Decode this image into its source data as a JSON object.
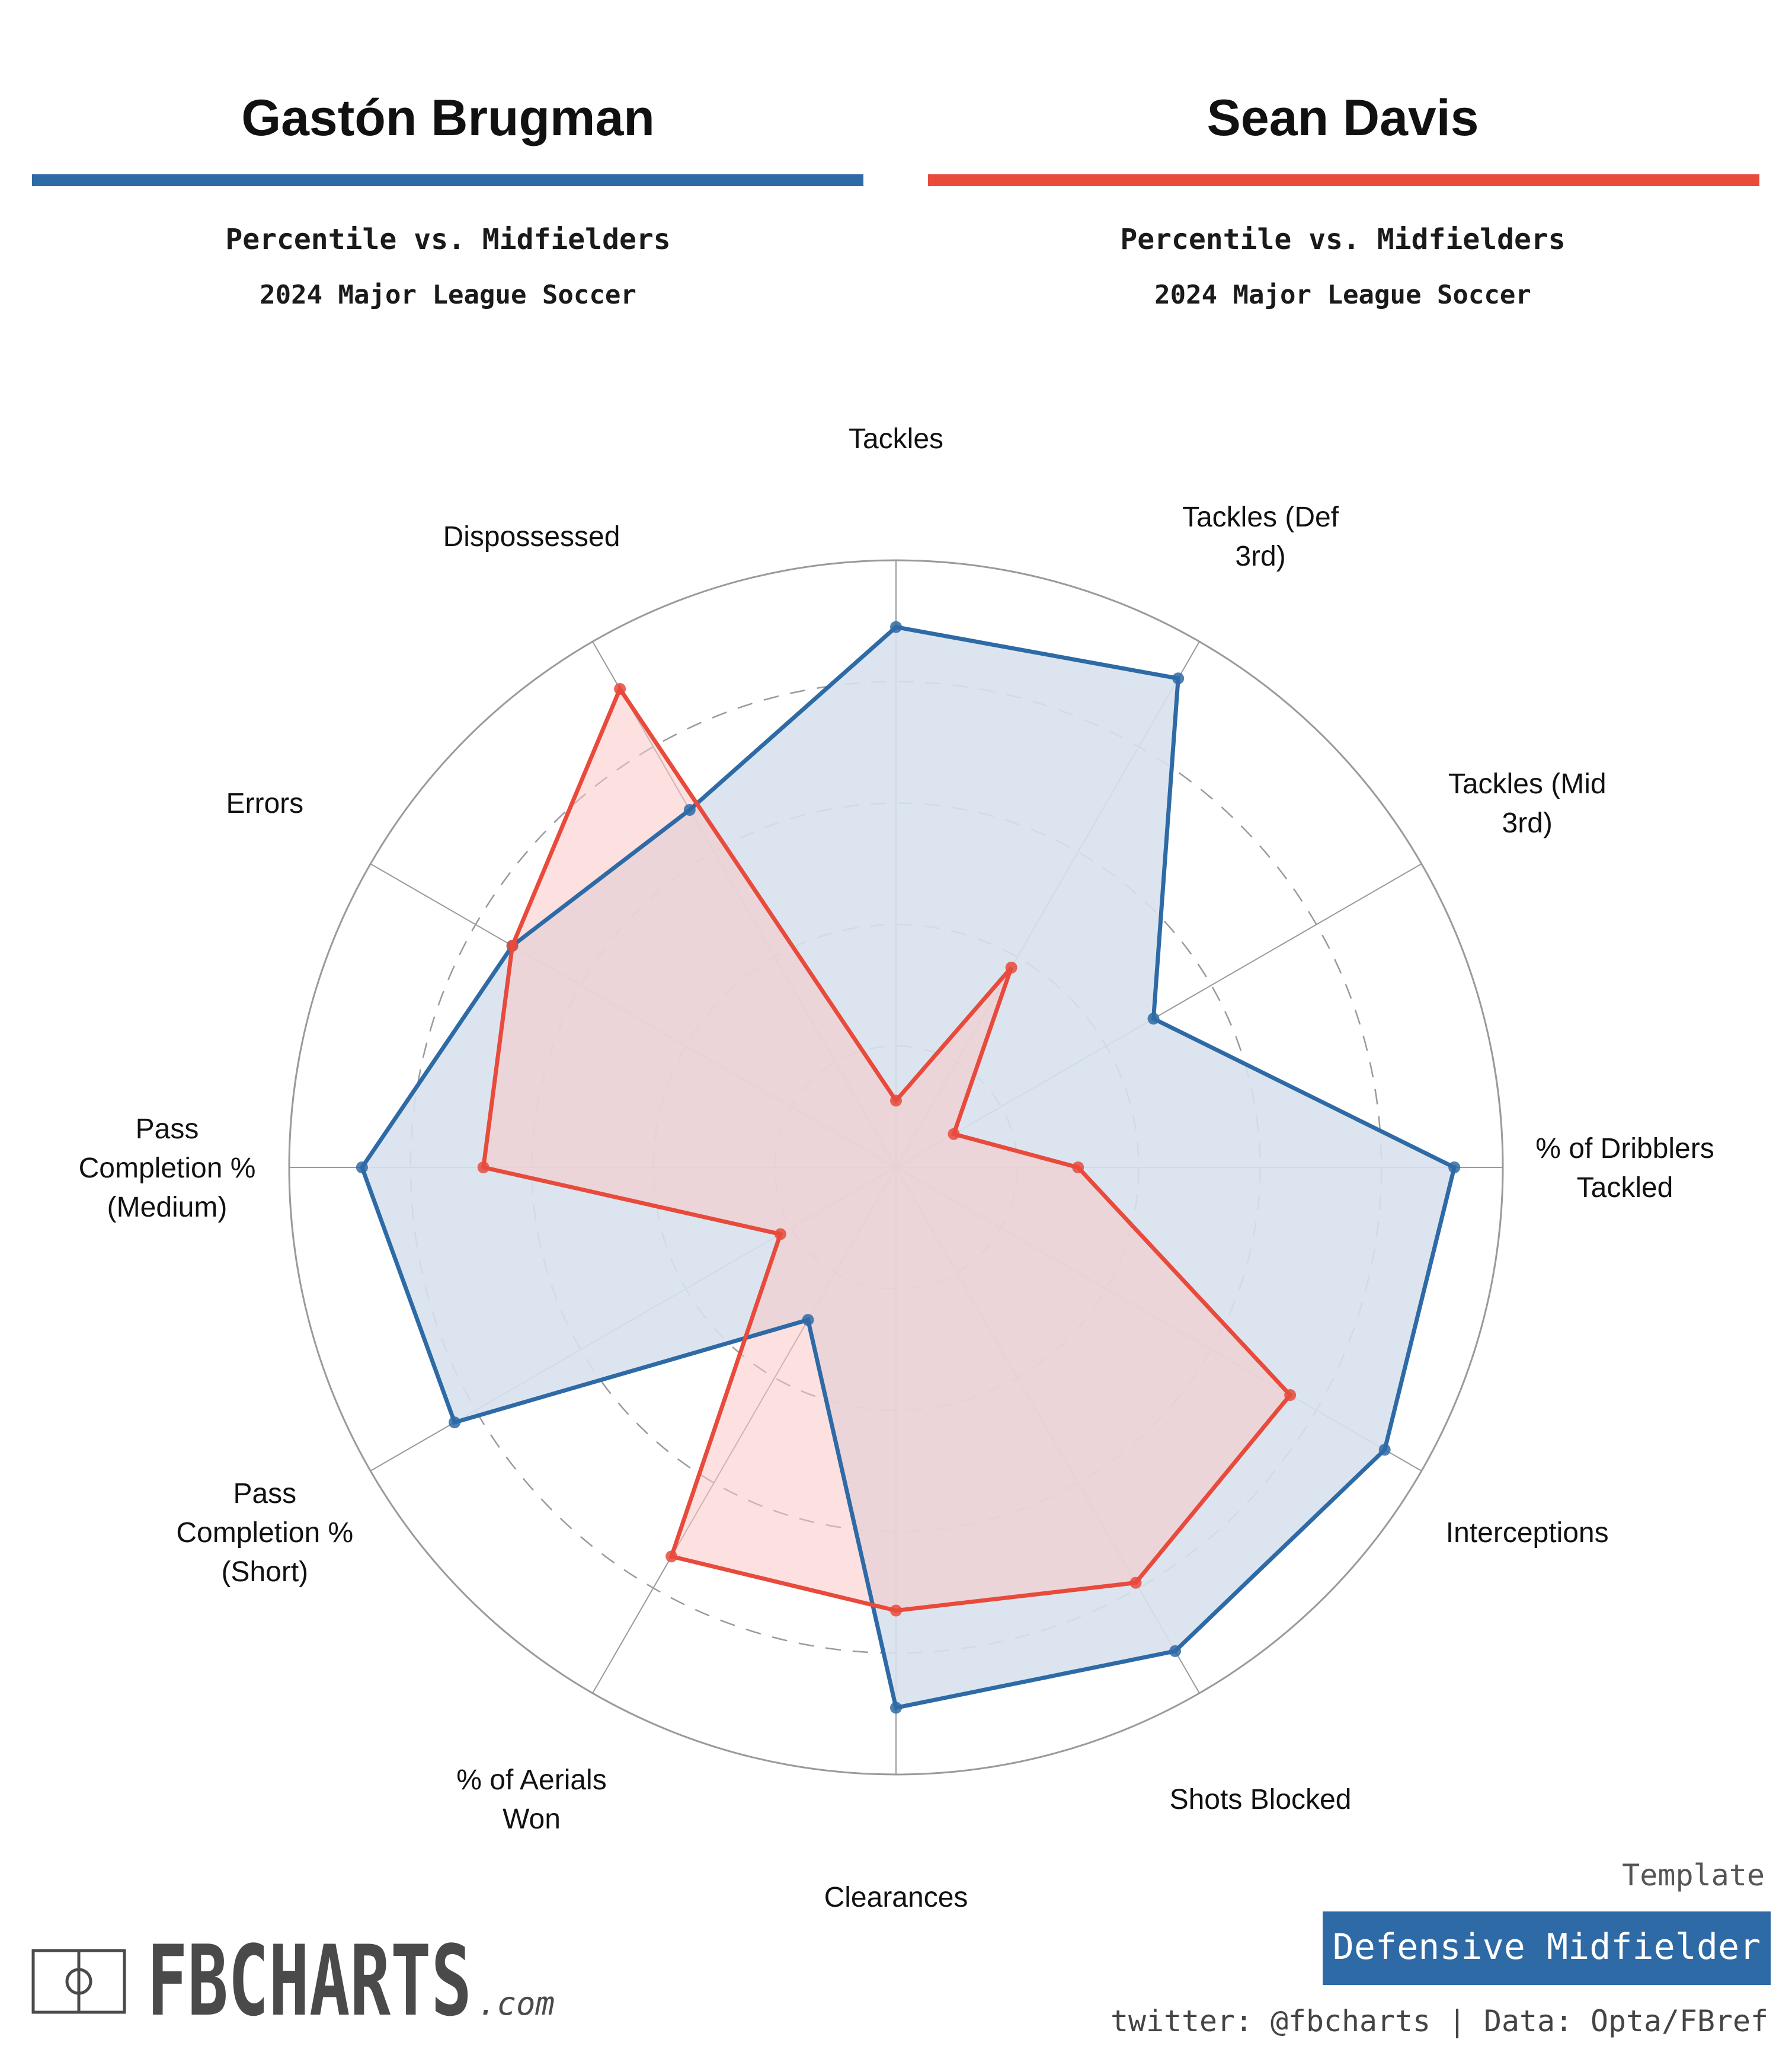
{
  "header": {
    "left": {
      "name": "Gastón Brugman",
      "subtitle": "Percentile vs. Midfielders",
      "competition": "2024 Major League Soccer"
    },
    "right": {
      "name": "Sean Davis",
      "subtitle": "Percentile vs. Midfielders",
      "competition": "2024 Major League Soccer"
    }
  },
  "colors": {
    "player1": "#2e6aa6",
    "player1_fill": "#d8e2ed",
    "player2": "#e84a3c",
    "player2_fill": "#f9c9c6",
    "grid": "#9a9a9a",
    "logo_text": "#4a4a4a",
    "template_box": "#2e6aa6"
  },
  "chart_data": {
    "type": "radar",
    "scale": [
      0,
      100
    ],
    "grid": true,
    "categories": [
      "Tackles",
      "Tackles (Def 3rd)",
      "Tackles (Mid 3rd)",
      "% of Dribblers Tackled",
      "Interceptions",
      "Shots Blocked",
      "Clearances",
      "% of Aerials Won",
      "Pass Completion % (Short)",
      "Pass Completion % (Medium)",
      "Errors",
      "Dispossessed"
    ],
    "labels_display": [
      [
        "Tackles"
      ],
      [
        "Tackles (Def",
        "3rd)"
      ],
      [
        "Tackles (Mid",
        "3rd)"
      ],
      [
        "% of Dribblers",
        "Tackled"
      ],
      [
        "Interceptions"
      ],
      [
        "Shots Blocked"
      ],
      [
        "Clearances"
      ],
      [
        "% of Aerials",
        "Won"
      ],
      [
        "Pass",
        "Completion %",
        "(Short)"
      ],
      [
        "Pass",
        "Completion %",
        "(Medium)"
      ],
      [
        "Errors"
      ],
      [
        "Dispossessed"
      ]
    ],
    "series": [
      {
        "name": "Gastón Brugman",
        "values": [
          89,
          93,
          49,
          92,
          93,
          92,
          89,
          29,
          84,
          88,
          73,
          68
        ]
      },
      {
        "name": "Sean Davis",
        "values": [
          11,
          38,
          11,
          30,
          75,
          79,
          73,
          74,
          22,
          68,
          73,
          91
        ]
      }
    ]
  },
  "footer": {
    "logo_text": "FBCHARTS",
    "logo_suffix": ".com",
    "template_label": "Template",
    "template_value": "Defensive Midfielder",
    "credits": "twitter: @fbcharts | Data: Opta/FBref"
  }
}
